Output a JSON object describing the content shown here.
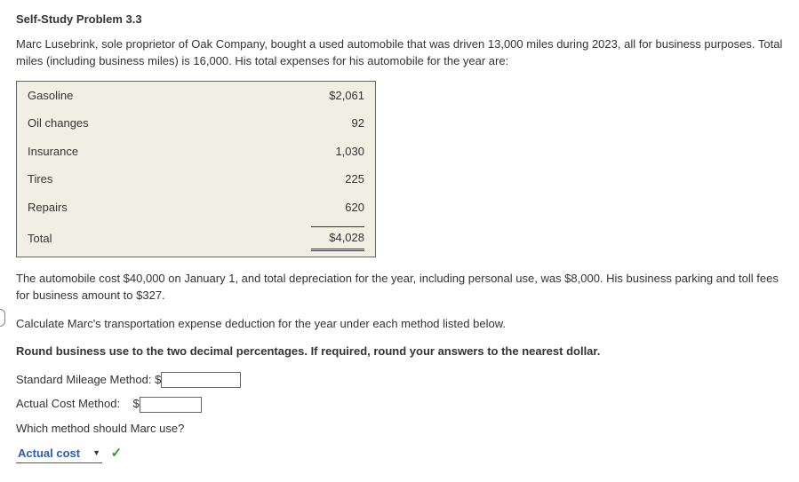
{
  "heading": "Self-Study Problem 3.3",
  "para1": "Marc Lusebrink, sole proprietor of Oak Company, bought a used automobile that was driven 13,000 miles during 2023, all for business purposes. Total miles (including business miles) is 16,000. His total expenses for his automobile for the year are:",
  "expenses": {
    "rows": [
      {
        "label": "Gasoline",
        "amount": "$2,061"
      },
      {
        "label": "Oil changes",
        "amount": "92"
      },
      {
        "label": "Insurance",
        "amount": "1,030"
      },
      {
        "label": "Tires",
        "amount": "225"
      },
      {
        "label": "Repairs",
        "amount": "620"
      }
    ],
    "total_label": "Total",
    "total_amount": "$4,028"
  },
  "para2": "The automobile cost $40,000 on January 1, and total depreciation for the year, including personal use, was $8,000. His business parking and toll fees for business amount to $327.",
  "para3": "Calculate Marc's transportation expense deduction for the year under each method listed below.",
  "para4_bold": "Round business use to the two decimal percentages. If required, round your answers to the nearest dollar.",
  "std_label": "Standard Mileage Method: $",
  "actual_label": "Actual Cost Method:",
  "actual_dollar": "$",
  "which_label": "Which method should Marc use?",
  "select_value": "Actual cost"
}
